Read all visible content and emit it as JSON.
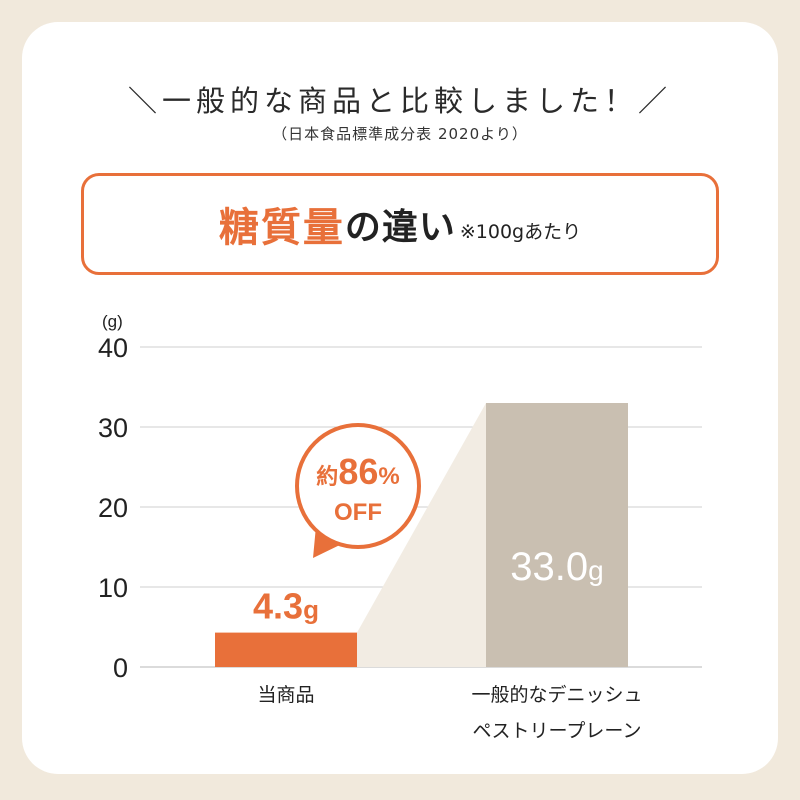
{
  "header": {
    "headline": "＼一般的な商品と比較しました！／",
    "source": "（日本食品標準成分表 2020より）",
    "title_main": "糖質量",
    "title_sub": "の違い",
    "title_note": "※100gあたり"
  },
  "badge": {
    "prefix": "約",
    "number": "86",
    "percent": "%",
    "off": "OFF"
  },
  "colors": {
    "accent": "#e8703a",
    "compare_bar": "#c9bfb1",
    "connector": "#f2ece3",
    "background": "#f1e9dc"
  },
  "chart_data": {
    "type": "bar",
    "ylabel": "(g)",
    "ylim": [
      0,
      40
    ],
    "yticks": [
      0,
      10,
      20,
      30,
      40
    ],
    "categories": [
      "当商品",
      "一般的なデニッシュ\nペストリープレーン"
    ],
    "category_lines": [
      [
        "当商品"
      ],
      [
        "一般的なデニッシュ",
        "ペストリープレーン"
      ]
    ],
    "values": [
      4.3,
      33.0
    ],
    "labels": [
      "4.3g",
      "33.0g"
    ],
    "grid": true
  }
}
